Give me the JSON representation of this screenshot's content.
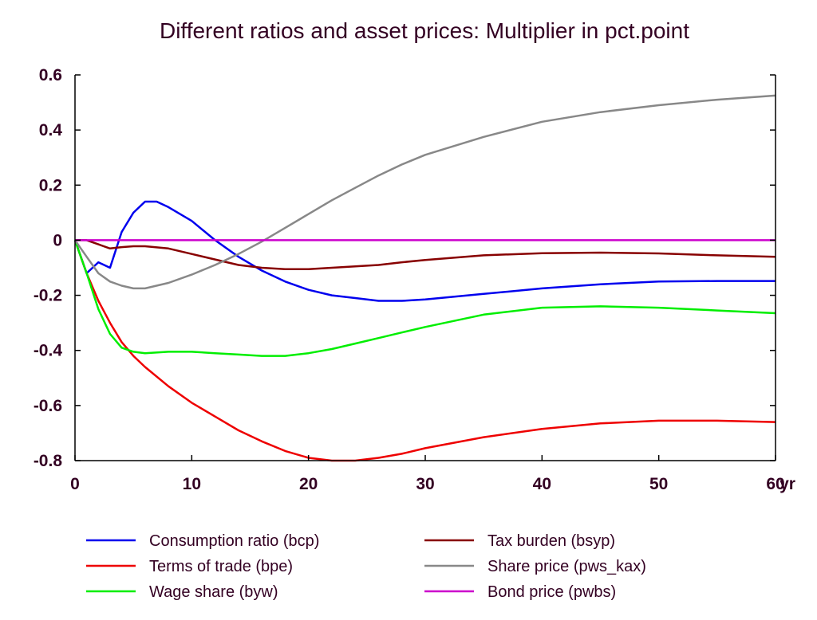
{
  "chart_data": {
    "type": "line",
    "title": "Different ratios and asset prices: Multiplier in pct.point",
    "xlabel": "",
    "ylabel": "",
    "x_unit_label": "yr",
    "xlim": [
      0,
      60
    ],
    "ylim": [
      -0.8,
      0.6
    ],
    "x_ticks": [
      0,
      10,
      20,
      30,
      40,
      50,
      60
    ],
    "x_tick_labels": [
      "0",
      "10",
      "20",
      "30",
      "40",
      "50",
      "60"
    ],
    "y_ticks": [
      0.6,
      0.4,
      0.2,
      0,
      -0.2,
      -0.4,
      -0.6,
      -0.8
    ],
    "y_tick_labels": [
      "0.6",
      "0.4",
      "0.2",
      "0",
      "-0.2",
      "-0.4",
      "-0.6",
      "-0.8"
    ],
    "grid": false,
    "legend_placement": "bottom",
    "series": [
      {
        "name": "Consumption ratio (bcp)",
        "color": "#0000ee",
        "x": [
          0,
          1,
          2,
          3,
          4,
          5,
          6,
          7,
          8,
          10,
          12,
          14,
          16,
          18,
          20,
          22,
          24,
          26,
          28,
          30,
          35,
          40,
          45,
          50,
          55,
          60
        ],
        "y": [
          0,
          -0.12,
          -0.08,
          -0.1,
          0.03,
          0.1,
          0.14,
          0.14,
          0.12,
          0.07,
          0.0,
          -0.06,
          -0.11,
          -0.15,
          -0.18,
          -0.2,
          -0.21,
          -0.22,
          -0.22,
          -0.215,
          -0.195,
          -0.175,
          -0.16,
          -0.15,
          -0.148,
          -0.148
        ]
      },
      {
        "name": "Terms of trade (bpe)",
        "color": "#ee0000",
        "x": [
          0,
          1,
          2,
          3,
          4,
          5,
          6,
          8,
          10,
          12,
          14,
          16,
          18,
          20,
          22,
          24,
          26,
          28,
          30,
          35,
          40,
          45,
          50,
          55,
          60
        ],
        "y": [
          0,
          -0.12,
          -0.22,
          -0.3,
          -0.37,
          -0.42,
          -0.46,
          -0.53,
          -0.59,
          -0.64,
          -0.69,
          -0.73,
          -0.765,
          -0.79,
          -0.8,
          -0.8,
          -0.79,
          -0.775,
          -0.755,
          -0.715,
          -0.685,
          -0.665,
          -0.655,
          -0.655,
          -0.66
        ]
      },
      {
        "name": "Wage share (byw)",
        "color": "#00ee00",
        "x": [
          0,
          1,
          2,
          3,
          4,
          5,
          6,
          8,
          10,
          12,
          14,
          16,
          18,
          20,
          22,
          24,
          26,
          28,
          30,
          35,
          40,
          45,
          50,
          55,
          60
        ],
        "y": [
          0,
          -0.12,
          -0.25,
          -0.34,
          -0.39,
          -0.405,
          -0.41,
          -0.405,
          -0.405,
          -0.41,
          -0.415,
          -0.42,
          -0.42,
          -0.41,
          -0.395,
          -0.375,
          -0.355,
          -0.335,
          -0.315,
          -0.27,
          -0.245,
          -0.24,
          -0.245,
          -0.255,
          -0.265
        ]
      },
      {
        "name": "Tax burden (bsyp)",
        "color": "#880000",
        "x": [
          0,
          1,
          2,
          3,
          4,
          5,
          6,
          8,
          10,
          12,
          14,
          16,
          18,
          20,
          22,
          24,
          26,
          28,
          30,
          35,
          40,
          45,
          50,
          55,
          60
        ],
        "y": [
          0,
          0.0,
          -0.015,
          -0.03,
          -0.025,
          -0.022,
          -0.022,
          -0.03,
          -0.05,
          -0.07,
          -0.09,
          -0.1,
          -0.105,
          -0.105,
          -0.1,
          -0.095,
          -0.09,
          -0.08,
          -0.072,
          -0.055,
          -0.047,
          -0.045,
          -0.048,
          -0.055,
          -0.06
        ]
      },
      {
        "name": "Share price (pws_kax)",
        "color": "#888888",
        "x": [
          0,
          1,
          2,
          3,
          4,
          5,
          6,
          8,
          10,
          12,
          14,
          16,
          18,
          20,
          22,
          24,
          26,
          28,
          30,
          35,
          40,
          45,
          50,
          55,
          60
        ],
        "y": [
          0,
          -0.06,
          -0.12,
          -0.15,
          -0.165,
          -0.175,
          -0.175,
          -0.155,
          -0.125,
          -0.09,
          -0.05,
          -0.005,
          0.045,
          0.095,
          0.145,
          0.19,
          0.235,
          0.275,
          0.31,
          0.375,
          0.43,
          0.465,
          0.49,
          0.51,
          0.525
        ]
      },
      {
        "name": "Bond price (pwbs)",
        "color": "#cc00cc",
        "x": [
          0,
          60
        ],
        "y": [
          0,
          0
        ]
      }
    ]
  }
}
